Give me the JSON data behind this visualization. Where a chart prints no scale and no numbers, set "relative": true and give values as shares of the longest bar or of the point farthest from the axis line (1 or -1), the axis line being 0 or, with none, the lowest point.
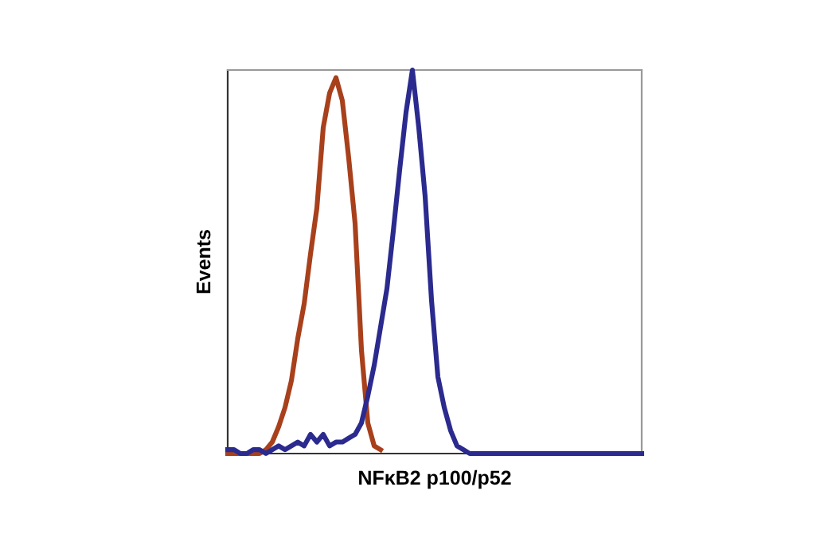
{
  "chart_data": {
    "type": "line",
    "relative": true,
    "xlabel": "NFκB2 p100/p52",
    "ylabel": "Events",
    "categories": [
      null,
      null,
      null,
      null,
      null,
      null,
      null,
      null,
      null,
      null,
      null,
      null,
      null,
      null,
      null,
      null,
      null,
      null,
      null,
      null,
      null,
      null,
      null,
      null,
      null,
      null,
      null,
      null,
      null,
      null,
      null,
      null,
      null,
      null,
      null,
      null,
      null,
      null,
      null,
      null,
      null,
      null,
      null,
      null,
      null,
      null,
      null,
      null,
      null,
      null,
      null,
      null,
      null,
      null,
      null,
      null,
      null,
      null,
      null,
      null,
      null,
      null,
      null,
      null,
      null,
      null
    ],
    "series": [
      {
        "color": "#2b2a8e",
        "values": [
          0.01,
          0.01,
          0,
          0,
          0.01,
          0.01,
          0,
          0.01,
          0.02,
          0.01,
          0.02,
          0.03,
          0.02,
          0.05,
          0.03,
          0.05,
          0.02,
          0.03,
          0.03,
          0.04,
          0.05,
          0.08,
          0.15,
          0.23,
          0.33,
          0.43,
          0.58,
          0.74,
          0.89,
          1.0,
          0.85,
          0.67,
          0.4,
          0.2,
          0.12,
          0.06,
          0.02,
          0.01,
          0,
          0,
          0,
          0,
          0,
          0,
          0,
          0,
          0,
          0,
          0,
          0,
          0,
          0,
          0,
          0,
          0,
          0,
          0,
          0,
          0,
          0,
          0,
          0,
          0,
          0,
          0,
          0
        ]
      },
      {
        "color": "#a8401c",
        "values": [
          0,
          0,
          0,
          0,
          0,
          0,
          0.01,
          0.03,
          0.07,
          0.12,
          0.19,
          0.3,
          0.39,
          0.52,
          0.64,
          0.85,
          0.94,
          0.98,
          0.92,
          0.77,
          0.6,
          0.27,
          0.08,
          0.02,
          0.01,
          null,
          null,
          null,
          null,
          null,
          null,
          null,
          null,
          null,
          null,
          null,
          null,
          null,
          null,
          null,
          null,
          null,
          null,
          null,
          null,
          null,
          null,
          null,
          null,
          null,
          null,
          null,
          null,
          null,
          null,
          null,
          null,
          null,
          null,
          null,
          null,
          null,
          null,
          null,
          null,
          null
        ]
      }
    ],
    "grid": false,
    "legend": false
  }
}
